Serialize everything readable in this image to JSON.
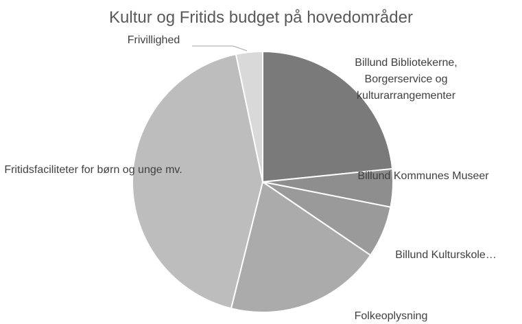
{
  "chart_data": {
    "type": "pie",
    "title": "Kultur og Fritids budget på hovedområder",
    "categories": [
      "Billund Bibliotekerne, Borgerservice og kulturarrangementer",
      "Billund Kommunes Museer",
      "Billund Kulturskole…",
      "Folkeoplysning",
      "Fritidsfaciliteter for børn og unge mv.",
      "Frivillighed"
    ],
    "values": [
      23.4,
      4.7,
      6.4,
      19.4,
      42.8,
      3.3
    ],
    "colors": [
      "#7a7a7a",
      "#8e8e8e",
      "#9a9a9a",
      "#ababab",
      "#bdbdbd",
      "#d9d9d9"
    ]
  }
}
